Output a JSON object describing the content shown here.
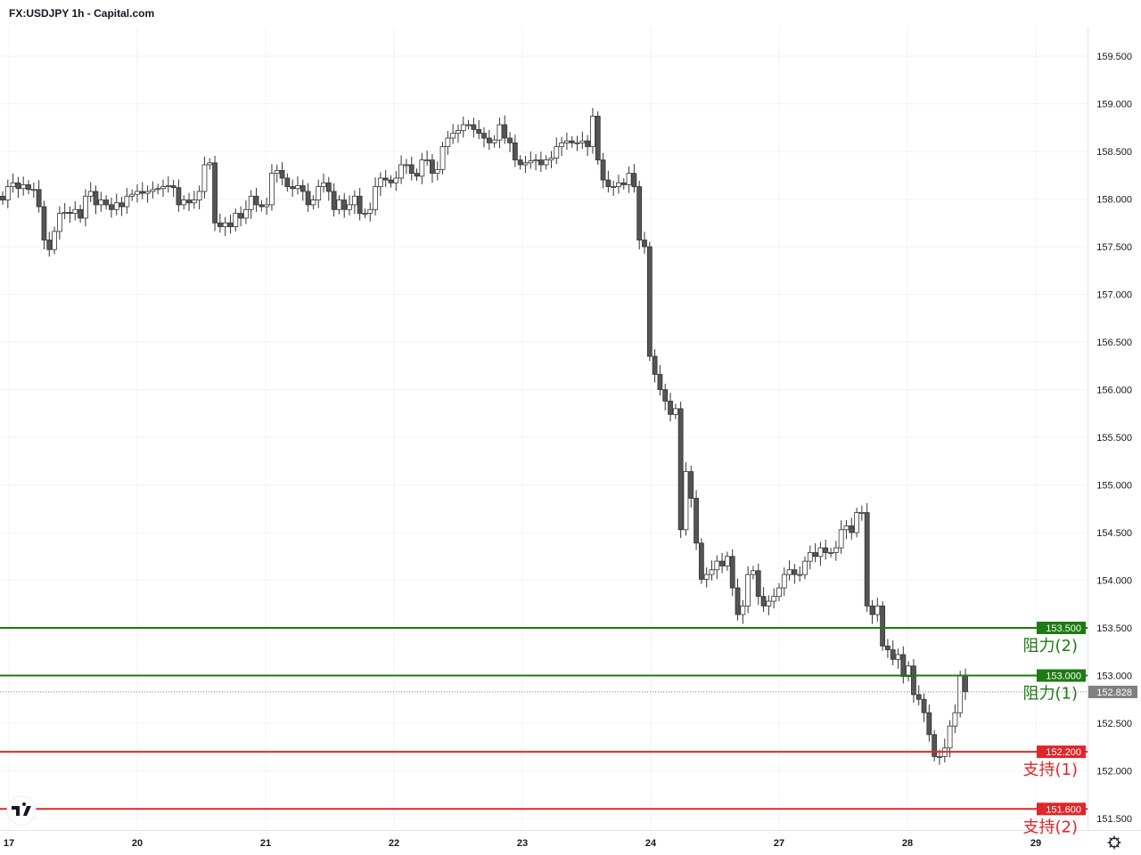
{
  "header": {
    "title": "FX:USDJPY 1h - Capital.com"
  },
  "colors": {
    "resistance": "#1e7a12",
    "support": "#e0262a",
    "last_price": "#808080",
    "bear_candle": "#555555",
    "bull_candle": "#ffffff",
    "candle_outline": "#333333",
    "grid": "#f0f3fa"
  },
  "icons": {
    "logo": "tradingview-logo",
    "settings": "gear-icon"
  },
  "chart_data": {
    "type": "candlestick",
    "title": "FX:USDJPY 1h - Capital.com",
    "timeframe": "1h",
    "ylim": [
      151.4,
      159.8
    ],
    "grid": true,
    "y_ticks": [
      "151.500",
      "152.000",
      "152.500",
      "153.000",
      "153.500",
      "154.000",
      "154.500",
      "155.000",
      "155.500",
      "156.000",
      "156.500",
      "157.000",
      "157.500",
      "158.000",
      "158.500",
      "159.000",
      "159.500"
    ],
    "x_ticks": [
      "17",
      "20",
      "21",
      "22",
      "23",
      "24",
      "27",
      "28",
      "29"
    ],
    "close": [
      157.99,
      158.13,
      158.17,
      158.11,
      158.15,
      158.1,
      158.1,
      157.92,
      157.57,
      157.47,
      157.66,
      157.85,
      157.86,
      157.85,
      157.89,
      157.8,
      158.03,
      158.08,
      157.94,
      157.99,
      157.94,
      157.89,
      157.96,
      157.92,
      158.03,
      158.05,
      158.08,
      158.06,
      158.08,
      158.1,
      158.11,
      158.13,
      158.14,
      158.12,
      157.94,
      157.99,
      157.96,
      157.99,
      158.08,
      158.36,
      158.38,
      157.75,
      157.71,
      157.75,
      157.71,
      157.85,
      157.8,
      157.89,
      158.03,
      157.94,
      157.92,
      157.94,
      158.27,
      158.3,
      158.22,
      158.13,
      158.11,
      158.14,
      158.08,
      157.94,
      157.99,
      158.13,
      158.17,
      158.08,
      157.89,
      157.99,
      157.89,
      157.94,
      158.03,
      157.85,
      157.85,
      157.89,
      158.13,
      158.22,
      158.2,
      158.17,
      158.22,
      158.36,
      158.36,
      158.27,
      158.24,
      158.41,
      158.41,
      158.27,
      158.31,
      158.55,
      158.64,
      158.69,
      158.72,
      158.78,
      158.78,
      158.73,
      158.69,
      158.64,
      158.59,
      158.62,
      158.78,
      158.64,
      158.59,
      158.41,
      158.36,
      158.38,
      158.4,
      158.41,
      158.36,
      158.41,
      158.43,
      158.55,
      158.59,
      158.61,
      158.59,
      158.59,
      158.61,
      158.55,
      158.87,
      158.41,
      158.2,
      158.13,
      158.13,
      158.17,
      158.15,
      158.27,
      158.13,
      157.57,
      157.5,
      156.35,
      156.16,
      156.0,
      155.88,
      155.74,
      155.8,
      154.53,
      155.14,
      154.86,
      154.39,
      154.01,
      154.06,
      154.11,
      154.2,
      154.15,
      154.25,
      153.92,
      153.64,
      153.73,
      154.06,
      154.1,
      153.83,
      153.73,
      153.78,
      153.83,
      153.92,
      154.06,
      154.11,
      154.06,
      154.06,
      154.2,
      154.29,
      154.25,
      154.34,
      154.29,
      154.29,
      154.34,
      154.53,
      154.57,
      154.5,
      154.71,
      154.71,
      153.73,
      153.64,
      153.73,
      153.31,
      153.27,
      153.17,
      153.22,
      152.99,
      153.1,
      152.8,
      152.75,
      152.61,
      152.38,
      152.15,
      152.15,
      152.24,
      152.47,
      152.61,
      153.0,
      152.83
    ],
    "levels": [
      {
        "price": 153.5,
        "label": "153.500",
        "zone": "阻力(2)",
        "kind": "resistance"
      },
      {
        "price": 153.0,
        "label": "153.000",
        "zone": "阻力(1)",
        "kind": "resistance"
      },
      {
        "price": 152.2,
        "label": "152.200",
        "zone": "支持(1)",
        "kind": "support"
      },
      {
        "price": 151.6,
        "label": "151.600",
        "zone": "支持(2)",
        "kind": "support"
      }
    ],
    "last_price": {
      "price": 152.828,
      "label": "152.828"
    }
  }
}
